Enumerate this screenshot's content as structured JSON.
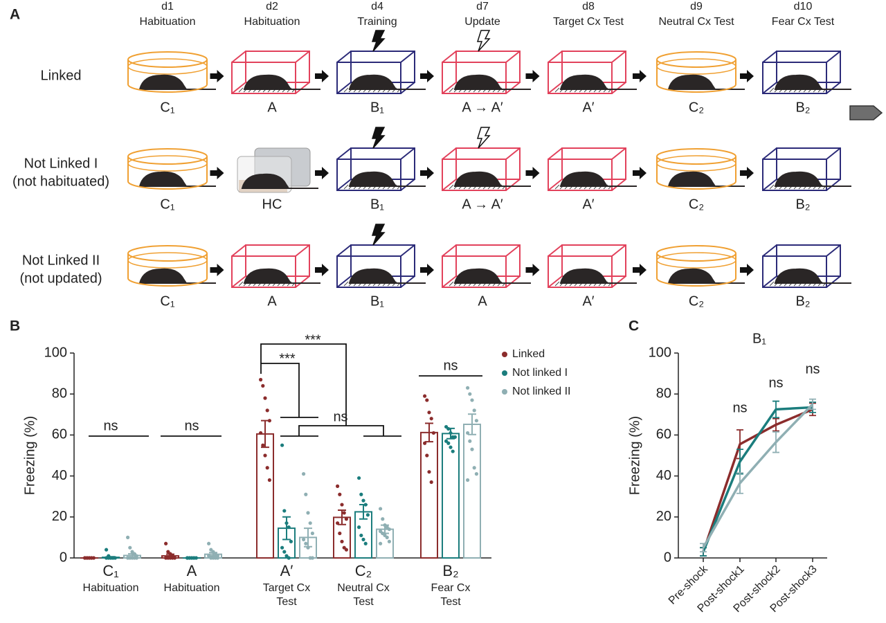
{
  "diagram": {
    "panel": "A",
    "days": [
      {
        "day": "d1",
        "phase": "Habituation"
      },
      {
        "day": "d2",
        "phase": "Habituation"
      },
      {
        "day": "d4",
        "phase": "Training"
      },
      {
        "day": "d7",
        "phase": "Update"
      },
      {
        "day": "d8",
        "phase": "Target Cx Test"
      },
      {
        "day": "d9",
        "phase": "Neutral Cx Test"
      },
      {
        "day": "d10",
        "phase": "Fear Cx Test"
      }
    ],
    "rows": [
      {
        "label": [
          "Linked"
        ],
        "contexts": [
          "C₁",
          "A",
          "B₁",
          "A → A′",
          "A′",
          "C₂",
          "B₂"
        ]
      },
      {
        "label": [
          "Not Linked I",
          "(not habituated)"
        ],
        "contexts": [
          "C₁",
          "HC",
          "B₁",
          "A → A′",
          "A′",
          "C₂",
          "B₂"
        ]
      },
      {
        "label": [
          "Not Linked II",
          "(not updated)"
        ],
        "contexts": [
          "C₁",
          "A",
          "B₁",
          "A",
          "A′",
          "C₂",
          "B₂"
        ]
      }
    ]
  },
  "chart_data": [
    {
      "type": "bar",
      "panel": "B",
      "y_label": "Freezing (%)",
      "categories": [
        "C₁",
        "A",
        "A′",
        "C₂",
        "B₂"
      ],
      "category_sublabels": [
        [
          "Habituation"
        ],
        [
          "Habituation"
        ],
        [
          "Target Cx",
          "Test"
        ],
        [
          "Neutral Cx",
          "Test"
        ],
        [
          "Fear Cx",
          "Test"
        ]
      ],
      "ylim": [
        0,
        100
      ],
      "yticks": [
        0,
        20,
        40,
        60,
        80,
        100
      ],
      "legend": "upper right",
      "annotations": [
        "ns",
        "ns",
        "***",
        "***",
        "ns",
        "ns"
      ],
      "series": [
        {
          "name": "Linked",
          "color": "#8b2c2c",
          "values": [
            0,
            1,
            60.5,
            19.8,
            61.2
          ],
          "errors": [
            0,
            0.8,
            6.5,
            3.5,
            4.5
          ],
          "points": [
            [
              0,
              0,
              0,
              0,
              0,
              0,
              0,
              0,
              0
            ],
            [
              7,
              3,
              2,
              1,
              0,
              0,
              0,
              0,
              0
            ],
            [
              87,
              84,
              78,
              72,
              67,
              61,
              55,
              50,
              44,
              38
            ],
            [
              35,
              31,
              26,
              22,
              19,
              17,
              12,
              8,
              5,
              4
            ],
            [
              79,
              77,
              71,
              68,
              61,
              56,
              50,
              42,
              37
            ]
          ]
        },
        {
          "name": "Not linked I",
          "color": "#1b7d7d",
          "values": [
            0.3,
            0,
            14.5,
            22.5,
            60.7
          ],
          "errors": [
            0.3,
            0,
            5.5,
            3.5,
            2.5
          ],
          "points": [
            [
              4,
              1,
              0,
              0,
              0,
              0,
              0,
              0,
              0
            ],
            [
              0,
              0,
              0,
              0,
              0,
              0,
              0,
              0,
              0
            ],
            [
              55,
              23,
              17,
              15,
              8,
              5,
              3,
              1,
              0
            ],
            [
              39,
              31,
              28,
              26,
              21,
              15,
              11,
              9,
              7
            ],
            [
              64,
              63,
              61,
              59,
              59,
              57,
              56,
              54,
              52
            ]
          ]
        },
        {
          "name": "Not linked II",
          "color": "#8fafb3",
          "values": [
            1.2,
            1.8,
            10,
            14,
            65.2
          ],
          "errors": [
            0.8,
            0.8,
            4.5,
            2,
            5
          ],
          "points": [
            [
              10,
              5,
              3,
              2,
              1,
              0,
              0,
              0,
              0,
              0
            ],
            [
              7,
              4,
              3,
              2,
              1,
              1,
              0,
              0,
              0,
              0
            ],
            [
              41,
              31,
              22,
              17,
              12,
              9,
              7,
              5,
              0,
              0
            ],
            [
              24,
              19,
              16,
              15,
              14,
              13,
              12,
              11,
              10,
              8,
              7
            ],
            [
              83,
              80,
              77,
              72,
              67,
              61,
              57,
              53,
              44,
              41,
              38
            ]
          ]
        }
      ]
    },
    {
      "type": "line",
      "panel": "C",
      "title": "B₁",
      "y_label": "Freezing (%)",
      "categories": [
        "Pre-shock",
        "Post-shock1",
        "Post-shock2",
        "Post-shock3"
      ],
      "ylim": [
        0,
        100
      ],
      "yticks": [
        0,
        20,
        40,
        60,
        80,
        100
      ],
      "annotations": [
        "ns",
        "ns",
        "ns"
      ],
      "series": [
        {
          "color": "#8b2c2c",
          "values": [
            3,
            55.5,
            65,
            72.5
          ],
          "errors": [
            2,
            7,
            3,
            3
          ]
        },
        {
          "color": "#1b7d7d",
          "values": [
            3,
            47,
            72.5,
            73.5
          ],
          "errors": [
            2,
            6,
            4,
            2.5
          ]
        },
        {
          "color": "#8fafb3",
          "values": [
            5,
            36.5,
            56.5,
            75
          ],
          "errors": [
            2,
            5,
            5,
            2.5
          ]
        }
      ]
    }
  ]
}
